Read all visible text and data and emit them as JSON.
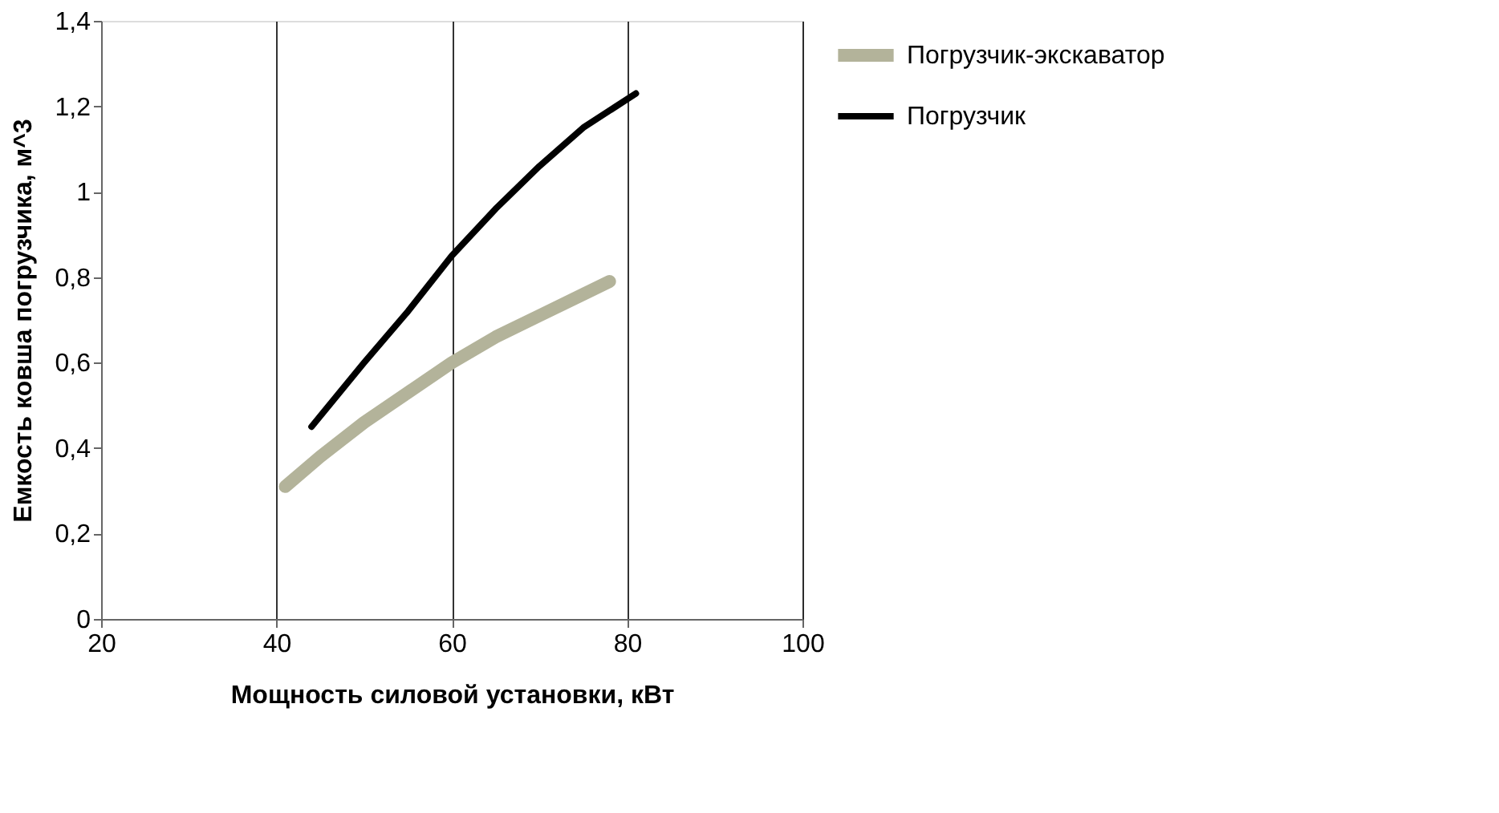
{
  "chart_data": {
    "type": "line",
    "xlabel": "Мощность силовой установки, кВт",
    "ylabel": "Емкость ковша погрузчика, м^3",
    "xlim": [
      20,
      100
    ],
    "xticks": [
      20,
      40,
      60,
      80,
      100
    ],
    "ylim": [
      0,
      1.4
    ],
    "yticks": [
      0,
      {
        "value": 0.2,
        "label": "0,2"
      },
      {
        "value": 0.4,
        "label": "0,4"
      },
      {
        "value": 0.6,
        "label": "0,6"
      },
      {
        "value": 0.8,
        "label": "0,8"
      },
      1,
      {
        "value": 1.2,
        "label": "1,2"
      },
      {
        "value": 1.4,
        "label": "1,4"
      }
    ],
    "grid": "x",
    "legend": "right",
    "line_style": "solid",
    "marker": "none",
    "series": [
      {
        "name": "Погрузчик-экскаватор",
        "color": "#b3b39a",
        "x": [
          41,
          45,
          50,
          55,
          60,
          65,
          70,
          75,
          78
        ],
        "values": [
          0.31,
          0.38,
          0.46,
          0.53,
          0.6,
          0.66,
          0.71,
          0.76,
          0.79
        ]
      },
      {
        "name": "Погрузчик",
        "color": "#000000",
        "x": [
          44,
          50,
          55,
          60,
          65,
          70,
          75,
          81
        ],
        "values": [
          0.45,
          0.6,
          0.72,
          0.85,
          0.96,
          1.06,
          1.15,
          1.23
        ]
      }
    ]
  }
}
